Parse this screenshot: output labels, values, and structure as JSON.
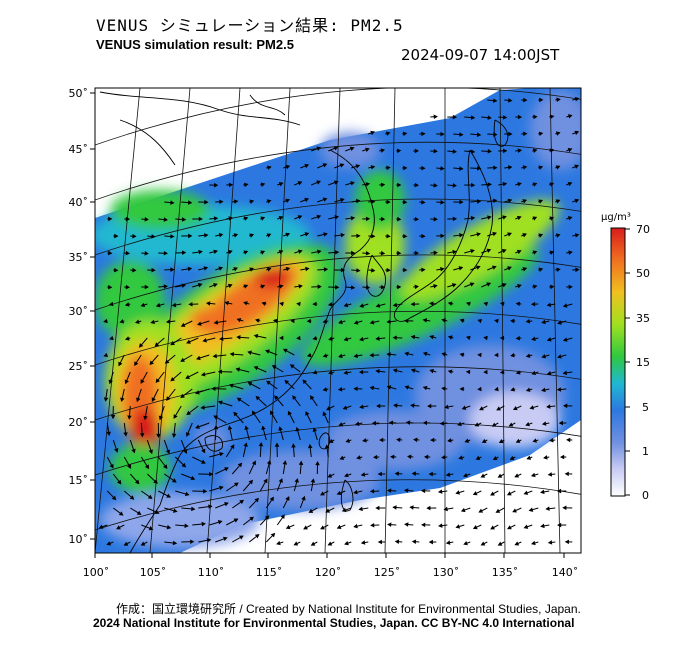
{
  "title_jp": "VENUS シミュレーション結果: PM2.5",
  "title_en": "VENUS simulation result: PM2.5",
  "datetime": "2024-09-07 14:00JST",
  "lat_labels": [
    "50˚",
    "45˚",
    "40˚",
    "35˚",
    "30˚",
    "25˚",
    "20˚",
    "15˚",
    "10˚"
  ],
  "lon_labels": [
    "100˚",
    "105˚",
    "110˚",
    "115˚",
    "120˚",
    "125˚",
    "130˚",
    "135˚",
    "140˚"
  ],
  "colorbar": {
    "unit": "μg/m³",
    "ticks": [
      "70",
      "50",
      "35",
      "15",
      "5",
      "1",
      "0"
    ],
    "colors": [
      "#d81c1c",
      "#f07020",
      "#f0c020",
      "#a0e020",
      "#30c840",
      "#20b8d0",
      "#2c78e0",
      "#7090e0",
      "#c8ccf4",
      "#ffffff"
    ]
  },
  "credit_line1": "作成：国立環境研究所 / Created by National Institute for Environmental Studies, Japan.",
  "credit_line2": "2024 National Institute for Environmental Studies, Japan. CC BY-NC 4.0 International"
}
